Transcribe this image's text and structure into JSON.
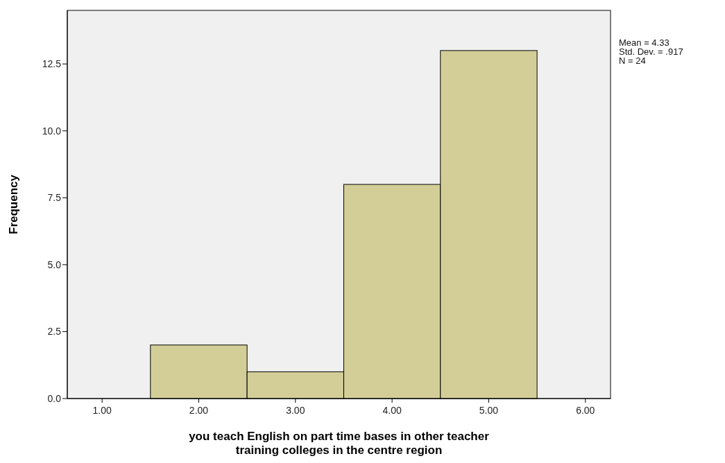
{
  "chart_data": {
    "type": "histogram",
    "xlabel": "you teach English on part time bases in other teacher training colleges in the centre region",
    "ylabel": "Frequency",
    "bins": [
      1.5,
      2.5,
      3.5,
      4.5,
      5.5
    ],
    "values": [
      2,
      1,
      8,
      13
    ],
    "color": "#d3ce97",
    "xlim": [
      0.64,
      6.26
    ],
    "xticks": [
      {
        "value": 1,
        "label": "1.00"
      },
      {
        "value": 2,
        "label": "2.00"
      },
      {
        "value": 3,
        "label": "3.00"
      },
      {
        "value": 4,
        "label": "4.00"
      },
      {
        "value": 5,
        "label": "5.00"
      },
      {
        "value": 6,
        "label": "6.00"
      }
    ],
    "ylim": [
      0,
      14.5
    ],
    "yticks": [
      {
        "value": 0,
        "label": "0.0"
      },
      {
        "value": 2.5,
        "label": "2.5"
      },
      {
        "value": 5,
        "label": "5.0"
      },
      {
        "value": 7.5,
        "label": "7.5"
      },
      {
        "value": 10,
        "label": "10.0"
      },
      {
        "value": 12.5,
        "label": "12.5"
      }
    ],
    "annotations": [
      "Mean = 4.33",
      "Std. Dev. = .917",
      "N = 24"
    ]
  }
}
